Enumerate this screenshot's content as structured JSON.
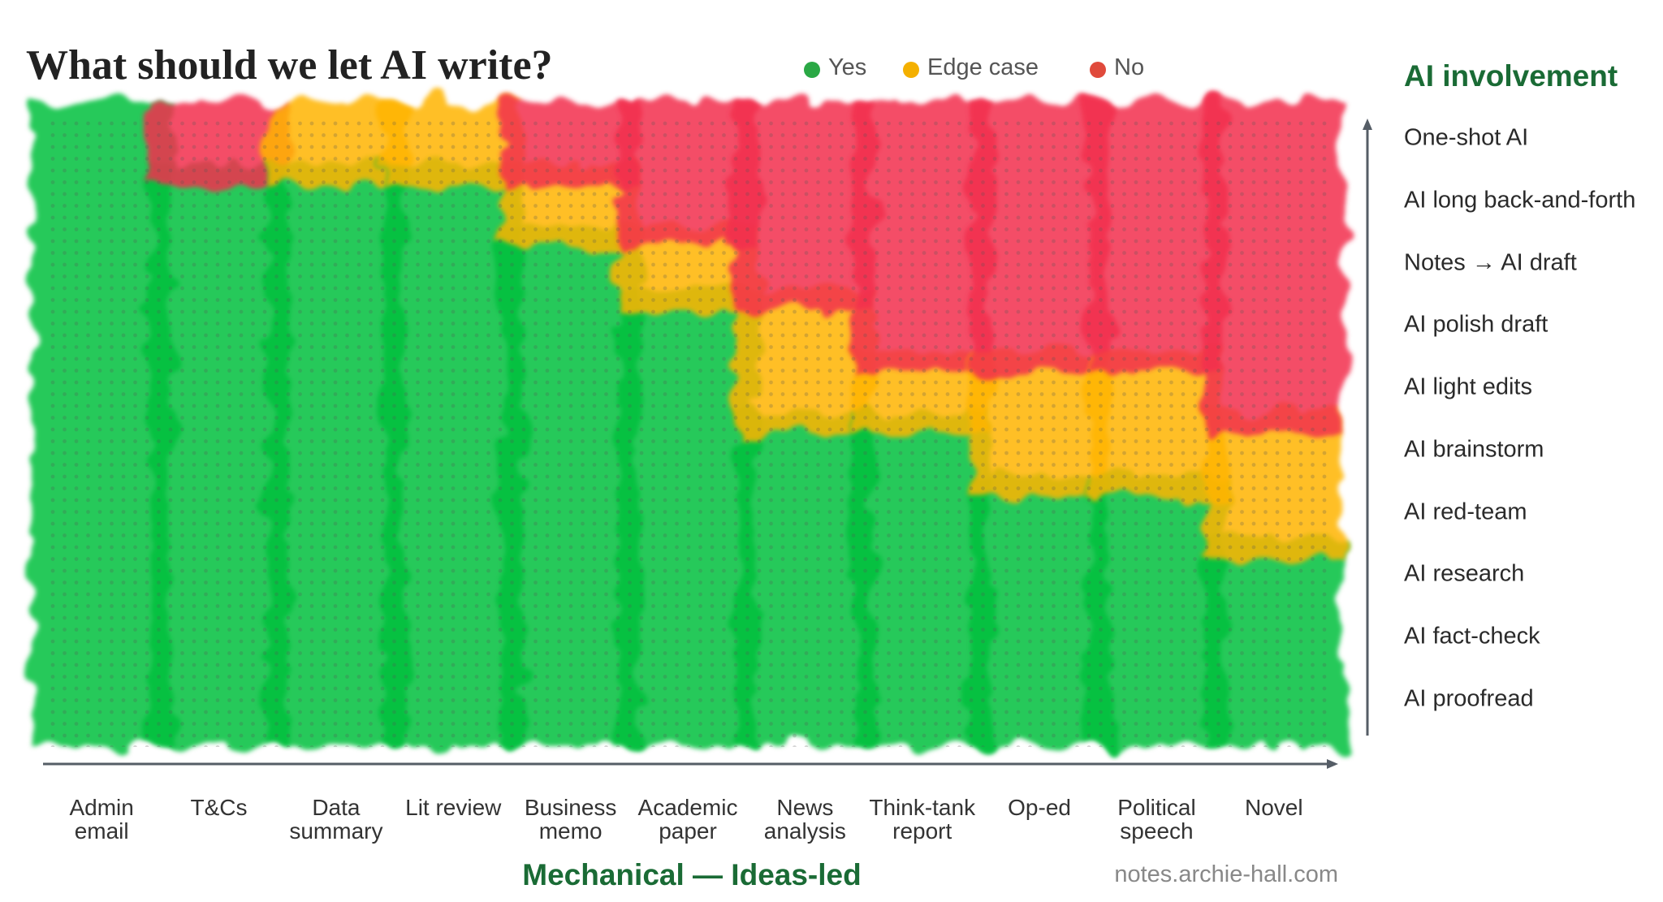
{
  "chart_data": {
    "type": "stacked-band",
    "title": "What should we let AI write?",
    "x_label": "Mechanical — Ideas-led",
    "y_label": "AI involvement",
    "source": "notes.archie-hall.com",
    "categories": [
      "Admin email",
      "T&Cs",
      "Data summary",
      "Lit review",
      "Business memo",
      "Academic paper",
      "News analysis",
      "Think-tank report",
      "Op-ed",
      "Political speech",
      "Novel"
    ],
    "y_categories": [
      "AI proofread",
      "AI fact-check",
      "AI research",
      "AI red-team",
      "AI brainstorm",
      "AI light edits",
      "AI polish draft",
      "Notes → AI draft",
      "AI long back-and-forth",
      "One-shot AI"
    ],
    "series": [
      {
        "name": "Yes",
        "color": "#00c03c",
        "legend_color": "#2aa845",
        "values": [
          10,
          9,
          9,
          9,
          8,
          7,
          5,
          5,
          4,
          4,
          3
        ]
      },
      {
        "name": "Edge case",
        "color": "#ffb400",
        "legend_color": "#f4b000",
        "values": [
          0,
          0,
          1,
          1,
          1,
          1,
          2,
          1,
          2,
          2,
          2
        ]
      },
      {
        "name": "No",
        "color": "#f2304c",
        "legend_color": "#e04a3c",
        "values": [
          0,
          1,
          0,
          0,
          1,
          2,
          3,
          4,
          4,
          4,
          5
        ]
      }
    ]
  }
}
